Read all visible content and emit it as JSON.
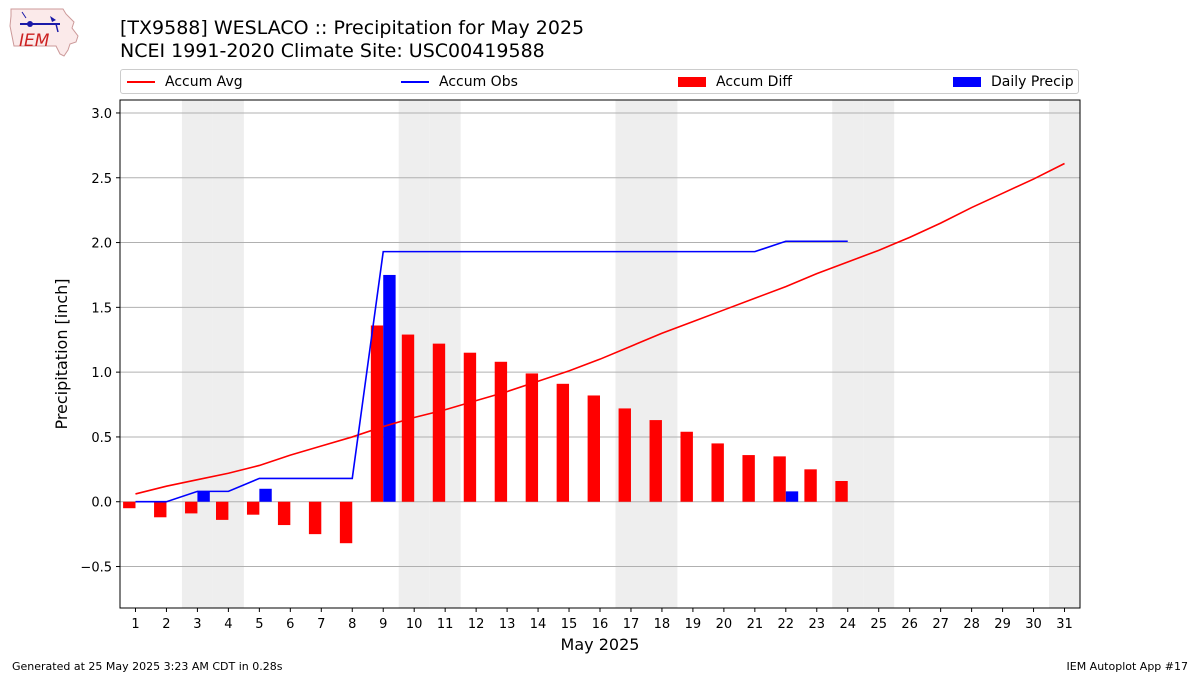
{
  "header": {
    "title": "[TX9588] WESLACO :: Precipitation for May 2025",
    "subtitle": "NCEI 1991-2020 Climate Site: USC00419588"
  },
  "logo": {
    "text": "IEM"
  },
  "footer": {
    "left": "Generated at 25 May 2025 3:23 AM CDT in 0.28s",
    "right": "IEM Autoplot App #17"
  },
  "colors": {
    "accum_avg": "#ff0000",
    "accum_obs": "#0000ff",
    "accum_diff": "#ff0000",
    "daily_precip": "#0000ff",
    "weekend_shade": "#eeeeee",
    "grid": "#b0b0b0"
  },
  "chart_data": {
    "type": "bar",
    "xlabel": "May 2025",
    "ylabel": "Precipitation [inch]",
    "ylim": [
      -0.82,
      3.1
    ],
    "yticks": [
      "−0.5",
      "0.0",
      "0.5",
      "1.0",
      "1.5",
      "2.0",
      "2.5",
      "3.0"
    ],
    "ytick_values": [
      -0.5,
      0.0,
      0.5,
      1.0,
      1.5,
      2.0,
      2.5,
      3.0
    ],
    "days": [
      1,
      2,
      3,
      4,
      5,
      6,
      7,
      8,
      9,
      10,
      11,
      12,
      13,
      14,
      15,
      16,
      17,
      18,
      19,
      20,
      21,
      22,
      23,
      24,
      25,
      26,
      27,
      28,
      29,
      30,
      31
    ],
    "weekend_days": [
      3,
      4,
      10,
      11,
      17,
      18,
      24,
      25,
      31
    ],
    "grid": "horizontal",
    "legend_position": "top",
    "legend": [
      "Accum Avg",
      "Accum Obs",
      "Accum Diff",
      "Daily Precip"
    ],
    "series": [
      {
        "name": "Accum Avg",
        "kind": "line",
        "values": [
          0.06,
          0.12,
          0.17,
          0.22,
          0.28,
          0.36,
          0.43,
          0.5,
          0.58,
          0.65,
          0.71,
          0.78,
          0.85,
          0.93,
          1.01,
          1.1,
          1.2,
          1.3,
          1.39,
          1.48,
          1.57,
          1.66,
          1.76,
          1.85,
          1.94,
          2.04,
          2.15,
          2.27,
          2.38,
          2.49,
          2.61
        ]
      },
      {
        "name": "Accum Obs",
        "kind": "line",
        "values": [
          0.0,
          0.0,
          0.08,
          0.08,
          0.18,
          0.18,
          0.18,
          0.18,
          1.93,
          1.93,
          1.93,
          1.93,
          1.93,
          1.93,
          1.93,
          1.93,
          1.93,
          1.93,
          1.93,
          1.93,
          1.93,
          2.01,
          2.01,
          2.01
        ]
      },
      {
        "name": "Accum Diff",
        "kind": "bar",
        "values": [
          -0.05,
          -0.12,
          -0.09,
          -0.14,
          -0.1,
          -0.18,
          -0.25,
          -0.32,
          1.36,
          1.29,
          1.22,
          1.15,
          1.08,
          0.99,
          0.91,
          0.82,
          0.72,
          0.63,
          0.54,
          0.45,
          0.36,
          0.35,
          0.25,
          0.16
        ]
      },
      {
        "name": "Daily Precip",
        "kind": "bar",
        "values": [
          0,
          0,
          0.08,
          0,
          0.1,
          0,
          0,
          0,
          1.75,
          0,
          0,
          0,
          0,
          0,
          0,
          0,
          0,
          0,
          0,
          0,
          0,
          0.08,
          0,
          0
        ]
      }
    ]
  }
}
